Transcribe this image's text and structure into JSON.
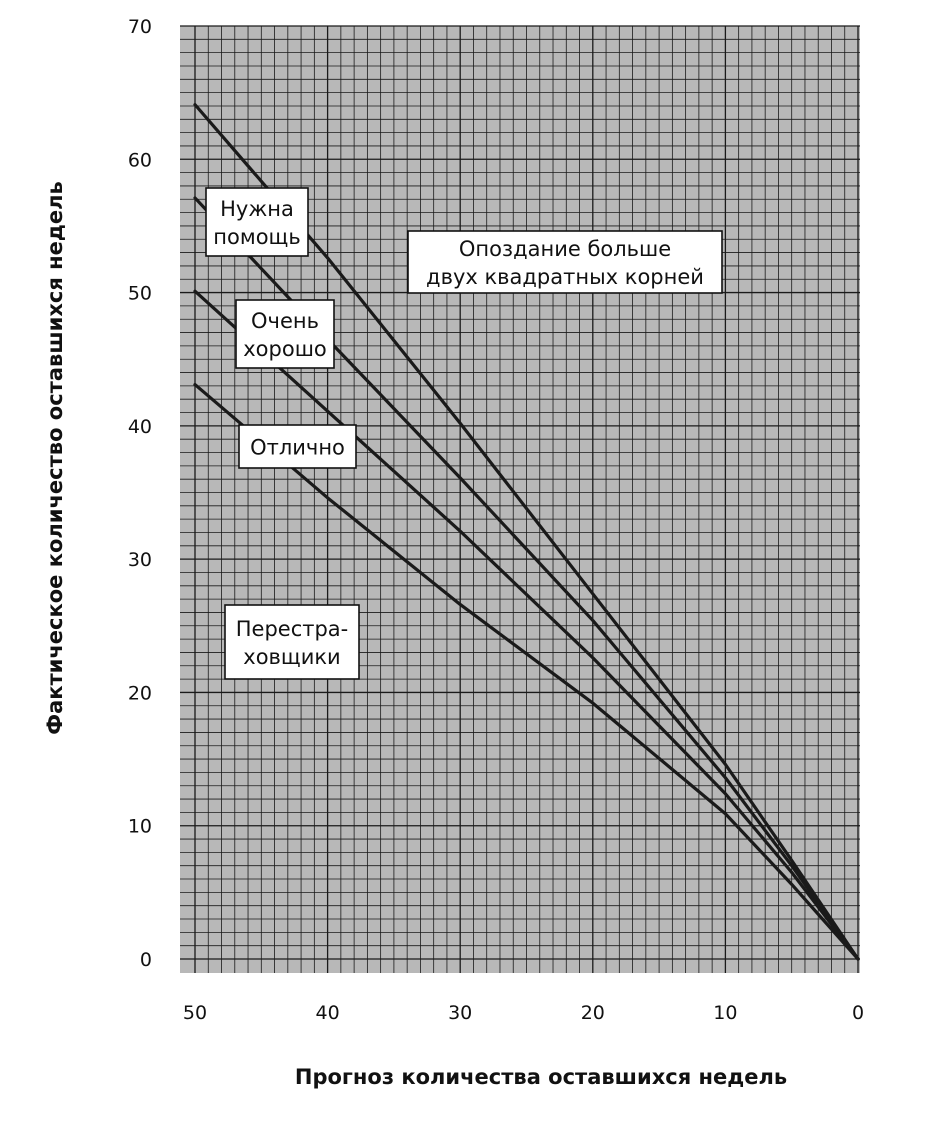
{
  "chart_data": {
    "type": "line",
    "xlabel": "Прогноз количества оставшихся недель",
    "ylabel": "Фактическое количество оставшихся недель",
    "xlim": [
      50,
      0
    ],
    "ylim": [
      0,
      70
    ],
    "x_ticks": [
      "50",
      "40",
      "30",
      "20",
      "10",
      "0"
    ],
    "y_ticks": [
      "0",
      "10",
      "20",
      "30",
      "40",
      "50",
      "60",
      "70"
    ],
    "grid": true,
    "colors": {
      "background": "#b8b8b8",
      "grid": "#1a1a1a",
      "line": "#1a1a1a"
    },
    "series": [
      {
        "x": [
          50,
          40,
          30,
          20,
          10,
          5,
          0
        ],
        "y": [
          64.1,
          52.6,
          40.2,
          27.4,
          14.6,
          7.4,
          0
        ]
      },
      {
        "x": [
          50,
          40,
          30,
          20,
          10,
          5,
          0
        ],
        "y": [
          57.1,
          46.5,
          36.1,
          25.4,
          13.6,
          7.0,
          0
        ]
      },
      {
        "x": [
          50,
          40,
          30,
          20,
          10,
          5,
          0
        ],
        "y": [
          50.1,
          41.1,
          32.1,
          22.6,
          12.4,
          6.5,
          0
        ]
      },
      {
        "x": [
          50,
          40,
          30,
          20,
          10,
          5,
          0
        ],
        "y": [
          43.1,
          34.6,
          26.6,
          19.2,
          10.9,
          5.6,
          0
        ]
      }
    ],
    "annotations": [
      {
        "lines": [
          "Нужна",
          "помощь"
        ]
      },
      {
        "lines": [
          "Опоздание больше",
          "двух квадратных корней"
        ]
      },
      {
        "lines": [
          "Очень",
          "хорошо"
        ]
      },
      {
        "lines": [
          "Отлично"
        ]
      },
      {
        "lines": [
          "Перестра-",
          "ховщики"
        ]
      }
    ]
  }
}
